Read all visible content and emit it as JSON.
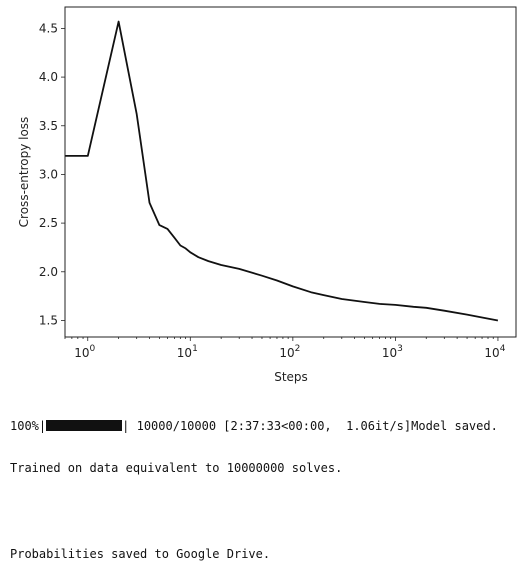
{
  "chart_data": {
    "type": "line",
    "xscale": "log",
    "xlabel": "Steps",
    "ylabel": "Cross-entropy loss",
    "xlim": [
      0.6,
      15000
    ],
    "ylim": [
      1.33,
      4.72
    ],
    "xticks": [
      {
        "value": 1,
        "base": "10",
        "exp": "0"
      },
      {
        "value": 10,
        "base": "10",
        "exp": "1"
      },
      {
        "value": 100,
        "base": "10",
        "exp": "2"
      },
      {
        "value": 1000,
        "base": "10",
        "exp": "3"
      },
      {
        "value": 10000,
        "base": "10",
        "exp": "4"
      }
    ],
    "yticks": [
      {
        "value": 1.5,
        "label": "1.5"
      },
      {
        "value": 2.0,
        "label": "2.0"
      },
      {
        "value": 2.5,
        "label": "2.5"
      },
      {
        "value": 3.0,
        "label": "3.0"
      },
      {
        "value": 3.5,
        "label": "3.5"
      },
      {
        "value": 4.0,
        "label": "4.0"
      },
      {
        "value": 4.5,
        "label": "4.5"
      }
    ],
    "grid": false,
    "line_color": "#111111",
    "x": [
      0.6,
      1,
      2,
      3,
      4,
      5,
      6,
      7,
      8,
      9,
      10,
      12,
      15,
      20,
      30,
      50,
      70,
      100,
      150,
      200,
      300,
      500,
      700,
      1000,
      1500,
      2000,
      3000,
      5000,
      7000,
      10000
    ],
    "y": [
      3.19,
      3.19,
      4.57,
      3.62,
      2.71,
      2.48,
      2.44,
      2.35,
      2.27,
      2.24,
      2.2,
      2.15,
      2.11,
      2.07,
      2.03,
      1.96,
      1.91,
      1.85,
      1.79,
      1.76,
      1.72,
      1.69,
      1.67,
      1.66,
      1.64,
      1.63,
      1.6,
      1.56,
      1.53,
      1.5
    ]
  },
  "output": {
    "progress_percent": "100%",
    "progress_fraction": 1.0,
    "progress_rest": "| 10000/10000 [2:37:33<00:00,  1.06it/s]Model saved.",
    "line2": "Trained on data equivalent to 10000000 solves.",
    "line3": "Probabilities saved to Google Drive."
  }
}
